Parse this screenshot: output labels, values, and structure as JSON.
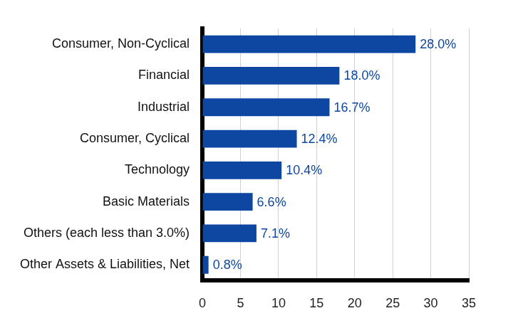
{
  "chart_data": {
    "type": "bar",
    "orientation": "horizontal",
    "categories": [
      "Consumer, Non-Cyclical",
      "Financial",
      "Industrial",
      "Consumer, Cyclical",
      "Technology",
      "Basic Materials",
      "Others (each less than 3.0%)",
      "Other Assets & Liabilities, Net"
    ],
    "values": [
      28.0,
      18.0,
      16.7,
      12.4,
      10.4,
      6.6,
      7.1,
      0.8
    ],
    "value_labels": [
      "28.0%",
      "18.0%",
      "16.7%",
      "12.4%",
      "10.4%",
      "6.6%",
      "7.1%",
      "0.8%"
    ],
    "color": "#0d47a1",
    "xlim": [
      0,
      35
    ],
    "xticks": [
      0,
      5,
      10,
      15,
      20,
      25,
      30,
      35
    ],
    "grid": true,
    "data_labels": true
  }
}
